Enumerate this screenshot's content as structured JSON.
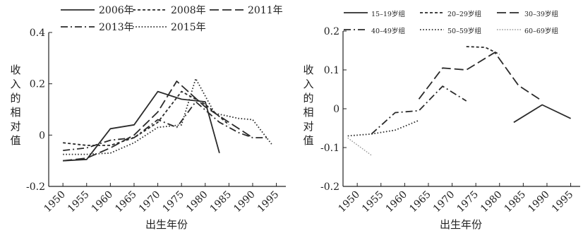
{
  "chart_data": [
    {
      "type": "line",
      "title": "",
      "xlabel": "出生年份",
      "ylabel": "收入的相对值",
      "xlim": [
        1947,
        1997
      ],
      "ylim": [
        -0.2,
        0.4
      ],
      "x_ticks": [
        1950,
        1955,
        1960,
        1965,
        1970,
        1975,
        1980,
        1985,
        1990,
        1995
      ],
      "y_ticks": [
        -0.2,
        0,
        0.2,
        0.4
      ],
      "y_tick_labels": [
        "-0.2",
        "0",
        "0.2",
        "0.4"
      ],
      "legend_position": "top",
      "series": [
        {
          "name": "2006年",
          "style": "solid",
          "color": "#2b2b2b",
          "x": [
            1950,
            1955,
            1960,
            1965,
            1970,
            1975,
            1980,
            1983
          ],
          "y": [
            -0.1,
            -0.095,
            0.025,
            0.04,
            0.17,
            0.14,
            0.13,
            -0.07
          ]
        },
        {
          "name": "2008年",
          "style": "short-dash",
          "color": "#2b2b2b",
          "x": [
            1950,
            1955,
            1960,
            1965,
            1970,
            1975,
            1980,
            1985
          ],
          "y": [
            -0.03,
            -0.04,
            -0.04,
            -0.01,
            0.05,
            0.17,
            0.12,
            0.04
          ]
        },
        {
          "name": "2011年",
          "style": "long-dash",
          "color": "#2b2b2b",
          "x": [
            1950,
            1955,
            1960,
            1965,
            1970,
            1974,
            1980,
            1985,
            1990
          ],
          "y": [
            -0.1,
            -0.09,
            -0.05,
            0.0,
            0.09,
            0.21,
            0.11,
            0.05,
            -0.01
          ]
        },
        {
          "name": "2013年",
          "style": "dash-dot",
          "color": "#2b2b2b",
          "x": [
            1950,
            1955,
            1960,
            1965,
            1970,
            1974,
            1978,
            1983,
            1987,
            1990,
            1993
          ],
          "y": [
            -0.06,
            -0.05,
            -0.02,
            -0.01,
            0.06,
            0.03,
            0.13,
            0.05,
            0.01,
            -0.01,
            -0.01
          ]
        },
        {
          "name": "2015年",
          "style": "dotted",
          "color": "#2b2b2b",
          "x": [
            1950,
            1955,
            1960,
            1965,
            1970,
            1975,
            1978,
            1982,
            1987,
            1990,
            1994
          ],
          "y": [
            -0.075,
            -0.075,
            -0.07,
            -0.03,
            0.03,
            0.04,
            0.22,
            0.085,
            0.065,
            0.06,
            -0.035
          ]
        }
      ]
    },
    {
      "type": "line",
      "title": "",
      "xlabel": "出生年份",
      "ylabel": "收入的相对值",
      "xlim": [
        1947,
        1997
      ],
      "ylim": [
        -0.2,
        0.2
      ],
      "x_ticks": [
        1950,
        1955,
        1960,
        1965,
        1970,
        1975,
        1980,
        1985,
        1990,
        1995
      ],
      "y_ticks": [
        -0.2,
        -0.1,
        0,
        0.1,
        0.2
      ],
      "y_tick_labels": [
        "-0.2",
        "-0.1",
        "0",
        "0.1",
        "0.2"
      ],
      "legend_position": "top",
      "series": [
        {
          "name": "15–19岁组",
          "style": "solid",
          "color": "#2b2b2b",
          "x": [
            1983,
            1989,
            1995
          ],
          "y": [
            -0.035,
            0.01,
            -0.025
          ]
        },
        {
          "name": "20–29岁组",
          "style": "short-dash",
          "color": "#2b2b2b",
          "x": [
            1973,
            1977,
            1980
          ],
          "y": [
            0.16,
            0.158,
            0.14
          ]
        },
        {
          "name": "30–39岁组",
          "style": "long-dash",
          "color": "#2b2b2b",
          "x": [
            1963,
            1968,
            1973,
            1979,
            1984,
            1989
          ],
          "y": [
            0.025,
            0.105,
            0.1,
            0.145,
            0.06,
            0.02
          ]
        },
        {
          "name": "40–49岁组",
          "style": "dash-dot",
          "color": "#2b2b2b",
          "x": [
            1953,
            1958,
            1963,
            1968,
            1973
          ],
          "y": [
            -0.065,
            -0.01,
            -0.005,
            0.058,
            0.02
          ]
        },
        {
          "name": "50–59岁组",
          "style": "dotted",
          "color": "#2b2b2b",
          "x": [
            1948,
            1953,
            1958,
            1963
          ],
          "y": [
            -0.07,
            -0.065,
            -0.055,
            -0.03
          ]
        },
        {
          "name": "60–69岁组",
          "style": "gray-dotted",
          "color": "#9a9a9a",
          "x": [
            1948,
            1953
          ],
          "y": [
            -0.075,
            -0.12
          ]
        }
      ]
    }
  ]
}
